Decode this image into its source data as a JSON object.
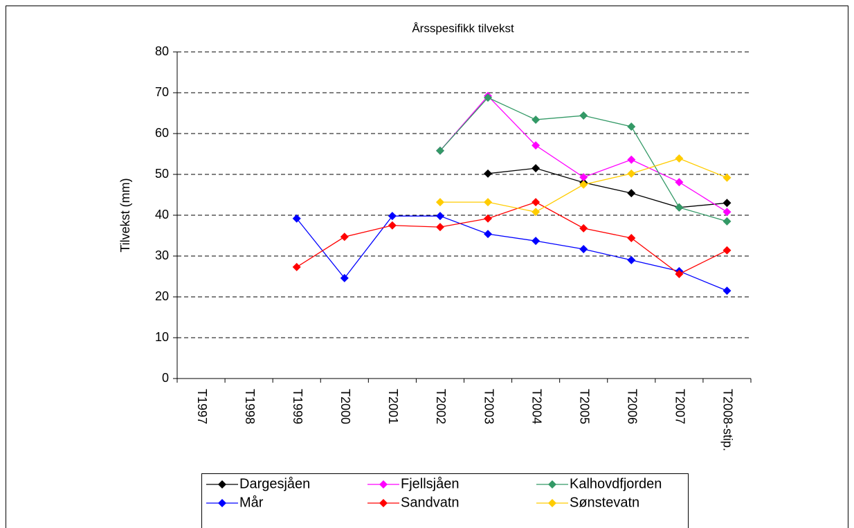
{
  "chart_data": {
    "type": "line",
    "title": "Årsspesifikk tilvekst",
    "y_label": "Tilvekst (mm)",
    "categories": [
      "T1997",
      "T1998",
      "T1999",
      "T2000",
      "T2001",
      "T2002",
      "T2003",
      "T2004",
      "T2005",
      "T2006",
      "T2007",
      "T2008-stip."
    ],
    "ylim": [
      0,
      80
    ],
    "yticks": [
      0,
      10,
      20,
      30,
      40,
      50,
      60,
      70,
      80
    ],
    "grid": true,
    "legend": "bottom",
    "series": [
      {
        "name": "Dargesjåen",
        "color": "#000000",
        "values": [
          null,
          null,
          null,
          null,
          null,
          null,
          50.2,
          51.5,
          48,
          45.4,
          41.9,
          43
        ]
      },
      {
        "name": "Fjellsjåen",
        "color": "#ff00ff",
        "values": [
          null,
          null,
          null,
          null,
          null,
          55.8,
          69.2,
          57.1,
          49.3,
          53.6,
          48.1,
          40.8
        ]
      },
      {
        "name": "Kalhovdfjorden",
        "color": "#339966",
        "values": [
          null,
          null,
          null,
          null,
          null,
          55.8,
          68.8,
          63.4,
          64.4,
          61.7,
          41.9,
          38.5
        ]
      },
      {
        "name": "Mår",
        "color": "#0000ff",
        "values": [
          null,
          null,
          39.2,
          24.6,
          39.8,
          39.8,
          35.4,
          33.7,
          31.7,
          29,
          26.3,
          21.5
        ]
      },
      {
        "name": "Sandvatn",
        "color": "#ff0000",
        "values": [
          null,
          null,
          27.3,
          34.7,
          37.5,
          37.1,
          39.2,
          43.2,
          36.8,
          34.4,
          25.6,
          31.4
        ]
      },
      {
        "name": "Sønstevatn",
        "color": "#ffcc00",
        "values": [
          null,
          null,
          null,
          null,
          null,
          43.2,
          43.2,
          40.8,
          47.5,
          50.2,
          53.9,
          49.2
        ]
      }
    ]
  }
}
